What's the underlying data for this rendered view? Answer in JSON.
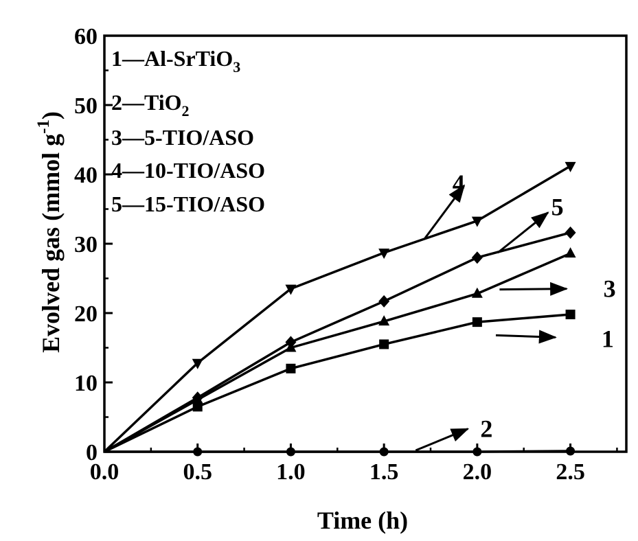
{
  "chart_data": {
    "type": "line",
    "title": "",
    "xlabel": "Time (h)",
    "ylabel": "Evolved gas (mmol g",
    "ylabel_sup": "-1",
    "ylabel_close": ")",
    "xlim": [
      0.0,
      2.8
    ],
    "ylim": [
      0,
      60
    ],
    "xticks": [
      0.0,
      0.5,
      1.0,
      1.5,
      2.0,
      2.5
    ],
    "xtick_labels": [
      "0.0",
      "0.5",
      "1.0",
      "1.5",
      "2.0",
      "2.5"
    ],
    "yticks": [
      0,
      10,
      20,
      30,
      40,
      50,
      60
    ],
    "ytick_labels": [
      "0",
      "10",
      "20",
      "30",
      "40",
      "50",
      "60"
    ],
    "grid": false,
    "legend_position": "top-left",
    "x": [
      0.0,
      0.5,
      1.0,
      1.5,
      2.0,
      2.5
    ],
    "series": [
      {
        "name": "Al-SrTiO",
        "sub": "3",
        "id": "1",
        "marker": "square",
        "values": [
          0,
          6.5,
          12.0,
          15.5,
          18.7,
          19.8
        ]
      },
      {
        "name": "TiO",
        "sub": "2",
        "id": "2",
        "marker": "circle",
        "values": [
          0,
          0,
          0,
          0,
          0,
          0.1
        ]
      },
      {
        "name": "5-TIO/ASO",
        "sub": "",
        "id": "3",
        "marker": "triangle-up",
        "values": [
          0,
          7.5,
          15.0,
          18.8,
          22.8,
          28.6
        ]
      },
      {
        "name": "10-TIO/ASO",
        "sub": "",
        "id": "4",
        "marker": "triangle-down",
        "values": [
          0,
          12.8,
          23.5,
          28.7,
          33.3,
          41.2
        ]
      },
      {
        "name": "15-TIO/ASO",
        "sub": "",
        "id": "5",
        "marker": "diamond",
        "values": [
          0,
          7.8,
          15.8,
          21.7,
          28.0,
          31.6
        ]
      }
    ],
    "legend_separator": "—",
    "annotations": [
      {
        "text": "1",
        "x": 2.7,
        "y": 16.3,
        "arrow_from": [
          2.1,
          16.8
        ],
        "arrow_to": [
          2.42,
          16.5
        ]
      },
      {
        "text": "2",
        "x": 2.05,
        "y": 3.3,
        "arrow_from": [
          1.67,
          0.2
        ],
        "arrow_to": [
          1.95,
          3.3
        ]
      },
      {
        "text": "3",
        "x": 2.71,
        "y": 23.5,
        "arrow_from": [
          2.12,
          23.4
        ],
        "arrow_to": [
          2.48,
          23.5
        ]
      },
      {
        "text": "4",
        "x": 1.9,
        "y": 38.7,
        "arrow_from": [
          1.72,
          30.8
        ],
        "arrow_to": [
          1.93,
          38.4
        ]
      },
      {
        "text": "5",
        "x": 2.43,
        "y": 35.3,
        "arrow_from": [
          2.11,
          28.7
        ],
        "arrow_to": [
          2.38,
          34.5
        ]
      }
    ]
  }
}
